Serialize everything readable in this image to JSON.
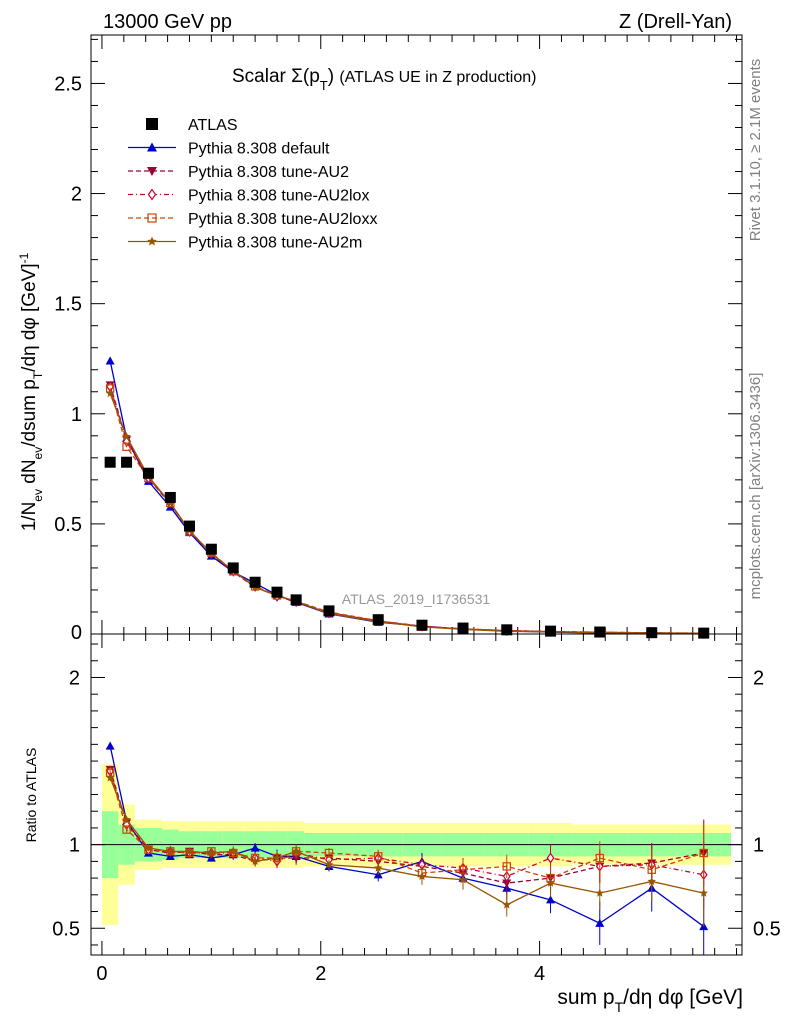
{
  "header": {
    "left": "13000 GeV pp",
    "right": "Z (Drell-Yan)"
  },
  "side_labels": {
    "rivet": "Rivet 3.1.10, ≥ 2.1M events",
    "mcplots": "mcplots.cern.ch [arXiv:1306.3436]"
  },
  "chart_data": {
    "type": "line",
    "title": "Scalar Σ(pT) (ATLAS UE in Z production)",
    "analysis_id": "ATLAS_2019_I1736531",
    "xlabel": "sum pT/dη dφ [GeV]",
    "ylabel": "1/Nev dNev/dsum pT/dη dφ [GeV]^-1",
    "ratio_ylabel": "Ratio to ATLAS",
    "xlim": [
      -0.1,
      5.85
    ],
    "ylim": [
      0,
      2.72
    ],
    "ratio_ylim": [
      0.34,
      2.26
    ],
    "x_ticks": [
      0,
      2,
      4
    ],
    "y_ticks": [
      0.5,
      1,
      1.5,
      2,
      2.5
    ],
    "y_tick_labels": [
      "0.5",
      "1",
      "1.5",
      "2",
      "2.5"
    ],
    "y_zero_label": "0",
    "ratio_y_ticks": [
      0.5,
      1,
      2
    ],
    "ratio_y_tick_labels": [
      "0.5",
      "1",
      "2"
    ],
    "legend_position": "top-left",
    "bins": [
      0.0,
      0.15,
      0.3,
      0.55,
      0.7,
      0.9,
      1.1,
      1.3,
      1.5,
      1.7,
      1.85,
      2.3,
      2.75,
      3.1,
      3.5,
      3.9,
      4.3,
      4.8,
      5.25,
      5.75
    ],
    "x": [
      0.075,
      0.225,
      0.425,
      0.625,
      0.8,
      1.0,
      1.2,
      1.4,
      1.6,
      1.775,
      2.075,
      2.525,
      2.925,
      3.3,
      3.7,
      4.1,
      4.55,
      5.025,
      5.5
    ],
    "atlas": [
      0.78,
      0.78,
      0.73,
      0.62,
      0.49,
      0.385,
      0.3,
      0.235,
      0.19,
      0.155,
      0.105,
      0.065,
      0.04,
      0.027,
      0.019,
      0.013,
      0.009,
      0.006,
      0.004
    ],
    "band_inner": [
      [
        0.8,
        1.2
      ],
      [
        0.88,
        1.12
      ],
      [
        0.9,
        1.1
      ],
      [
        0.91,
        1.09
      ],
      [
        0.92,
        1.08
      ],
      [
        0.92,
        1.08
      ],
      [
        0.92,
        1.08
      ],
      [
        0.92,
        1.08
      ],
      [
        0.92,
        1.08
      ],
      [
        0.92,
        1.08
      ],
      [
        0.93,
        1.07
      ],
      [
        0.93,
        1.07
      ],
      [
        0.93,
        1.07
      ],
      [
        0.93,
        1.07
      ],
      [
        0.93,
        1.07
      ],
      [
        0.93,
        1.07
      ],
      [
        0.93,
        1.07
      ],
      [
        0.93,
        1.07
      ],
      [
        0.93,
        1.07
      ]
    ],
    "band_outer": [
      [
        0.52,
        1.48
      ],
      [
        0.76,
        1.24
      ],
      [
        0.85,
        1.15
      ],
      [
        0.86,
        1.14
      ],
      [
        0.86,
        1.14
      ],
      [
        0.86,
        1.14
      ],
      [
        0.86,
        1.14
      ],
      [
        0.86,
        1.14
      ],
      [
        0.86,
        1.14
      ],
      [
        0.86,
        1.14
      ],
      [
        0.87,
        1.13
      ],
      [
        0.87,
        1.13
      ],
      [
        0.87,
        1.13
      ],
      [
        0.87,
        1.13
      ],
      [
        0.87,
        1.13
      ],
      [
        0.87,
        1.13
      ],
      [
        0.88,
        1.12
      ],
      [
        0.88,
        1.12
      ],
      [
        0.88,
        1.12
      ]
    ],
    "series": [
      {
        "name": "ATLAS",
        "marker": "square-filled",
        "color": "#000000",
        "style": "none"
      },
      {
        "name": "Pythia 8.308 default",
        "marker": "triangle-filled",
        "color": "#0000cc",
        "style": "solid",
        "ratio": [
          1.59,
          1.14,
          0.95,
          0.93,
          0.94,
          0.92,
          0.94,
          0.98,
          0.93,
          0.93,
          0.87,
          0.82,
          0.9,
          0.8,
          0.74,
          0.67,
          0.53,
          0.74,
          0.51
        ],
        "ratio_err": [
          0.02,
          0.02,
          0.01,
          0.02,
          0.02,
          0.02,
          0.03,
          0.03,
          0.04,
          0.04,
          0.03,
          0.04,
          0.05,
          0.06,
          0.07,
          0.08,
          0.13,
          0.14,
          0.2
        ]
      },
      {
        "name": "Pythia 8.308 tune-AU2",
        "marker": "triangle-down-filled",
        "color": "#990033",
        "style": "dashed",
        "ratio": [
          1.45,
          1.13,
          0.97,
          0.95,
          0.96,
          0.94,
          0.94,
          0.9,
          0.92,
          0.92,
          0.92,
          0.9,
          0.87,
          0.83,
          0.77,
          0.8,
          0.87,
          0.89,
          0.95
        ],
        "ratio_err": [
          0.02,
          0.02,
          0.01,
          0.02,
          0.02,
          0.02,
          0.03,
          0.03,
          0.04,
          0.04,
          0.03,
          0.04,
          0.05,
          0.06,
          0.07,
          0.08,
          0.1,
          0.12,
          0.2
        ]
      },
      {
        "name": "Pythia 8.308 tune-AU2lox",
        "marker": "diamond-open",
        "color": "#cc0033",
        "style": "dashdot",
        "ratio": [
          1.44,
          1.12,
          0.97,
          0.96,
          0.95,
          0.95,
          0.95,
          0.92,
          0.9,
          0.95,
          0.91,
          0.92,
          0.88,
          0.86,
          0.81,
          0.92,
          0.87,
          0.88,
          0.82
        ],
        "ratio_err": [
          0.02,
          0.02,
          0.01,
          0.02,
          0.02,
          0.02,
          0.03,
          0.03,
          0.04,
          0.04,
          0.03,
          0.04,
          0.05,
          0.06,
          0.07,
          0.08,
          0.1,
          0.12,
          0.2
        ]
      },
      {
        "name": "Pythia 8.308 tune-AU2loxx",
        "marker": "square-open",
        "color": "#cc4400",
        "style": "dashed",
        "ratio": [
          1.43,
          1.09,
          0.97,
          0.96,
          0.95,
          0.96,
          0.95,
          0.92,
          0.92,
          0.96,
          0.95,
          0.93,
          0.83,
          0.85,
          0.87,
          0.8,
          0.92,
          0.85,
          0.95
        ],
        "ratio_err": [
          0.02,
          0.02,
          0.01,
          0.02,
          0.02,
          0.02,
          0.03,
          0.03,
          0.04,
          0.04,
          0.03,
          0.04,
          0.05,
          0.06,
          0.07,
          0.08,
          0.1,
          0.12,
          0.2
        ]
      },
      {
        "name": "Pythia 8.308 tune-AU2m",
        "marker": "star",
        "color": "#995500",
        "style": "solid",
        "ratio": [
          1.4,
          1.15,
          0.98,
          0.96,
          0.96,
          0.95,
          0.96,
          0.9,
          0.92,
          0.96,
          0.88,
          0.86,
          0.81,
          0.79,
          0.64,
          0.77,
          0.71,
          0.78,
          0.71
        ],
        "ratio_err": [
          0.02,
          0.02,
          0.01,
          0.02,
          0.02,
          0.02,
          0.03,
          0.03,
          0.04,
          0.04,
          0.03,
          0.04,
          0.05,
          0.06,
          0.07,
          0.08,
          0.1,
          0.12,
          0.2
        ]
      }
    ]
  }
}
